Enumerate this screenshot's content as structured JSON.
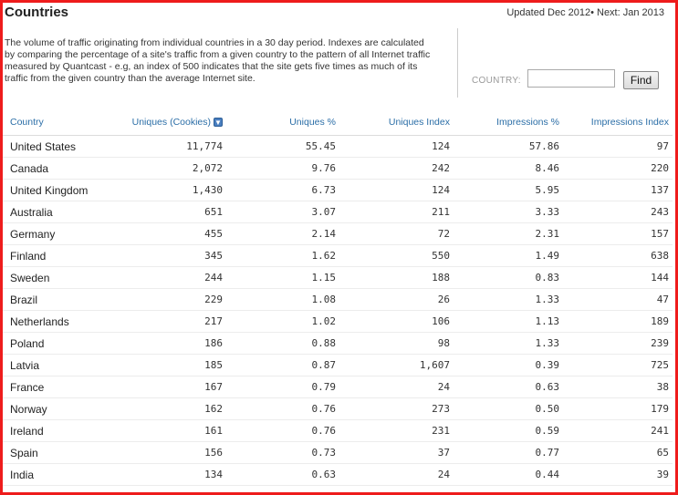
{
  "header": {
    "title": "Countries",
    "updated": "Updated Dec 2012• Next: Jan 2013"
  },
  "description": "The volume of traffic originating from individual countries in a 30 day period. Indexes are calculated by comparing the percentage of a site's traffic from a given country to the pattern of all Internet traffic measured by Quantcast - e.g, an index of 500 indicates that the site gets five times as much of its traffic from the given country than the average Internet site.",
  "search": {
    "label": "COUNTRY:",
    "value": "",
    "placeholder": "",
    "button": "Find"
  },
  "table": {
    "columns": [
      "Country",
      "Uniques (Cookies)",
      "Uniques %",
      "Uniques Index",
      "Impressions %",
      "Impressions Index"
    ],
    "sort_icon": "sort-down-arrow-icon",
    "rows": [
      [
        "United States",
        "11,774",
        "55.45",
        "124",
        "57.86",
        "97"
      ],
      [
        "Canada",
        "2,072",
        "9.76",
        "242",
        "8.46",
        "220"
      ],
      [
        "United Kingdom",
        "1,430",
        "6.73",
        "124",
        "5.95",
        "137"
      ],
      [
        "Australia",
        "651",
        "3.07",
        "211",
        "3.33",
        "243"
      ],
      [
        "Germany",
        "455",
        "2.14",
        "72",
        "2.31",
        "157"
      ],
      [
        "Finland",
        "345",
        "1.62",
        "550",
        "1.49",
        "638"
      ],
      [
        "Sweden",
        "244",
        "1.15",
        "188",
        "0.83",
        "144"
      ],
      [
        "Brazil",
        "229",
        "1.08",
        "26",
        "1.33",
        "47"
      ],
      [
        "Netherlands",
        "217",
        "1.02",
        "106",
        "1.13",
        "189"
      ],
      [
        "Poland",
        "186",
        "0.88",
        "98",
        "1.33",
        "239"
      ],
      [
        "Latvia",
        "185",
        "0.87",
        "1,607",
        "0.39",
        "725"
      ],
      [
        "France",
        "167",
        "0.79",
        "24",
        "0.63",
        "38"
      ],
      [
        "Norway",
        "162",
        "0.76",
        "273",
        "0.50",
        "179"
      ],
      [
        "Ireland",
        "161",
        "0.76",
        "231",
        "0.59",
        "241"
      ],
      [
        "Spain",
        "156",
        "0.73",
        "37",
        "0.77",
        "65"
      ],
      [
        "India",
        "134",
        "0.63",
        "24",
        "0.44",
        "39"
      ]
    ]
  },
  "colors": {
    "frame": "#ee1c1c",
    "header_link": "#2b6ea7"
  }
}
